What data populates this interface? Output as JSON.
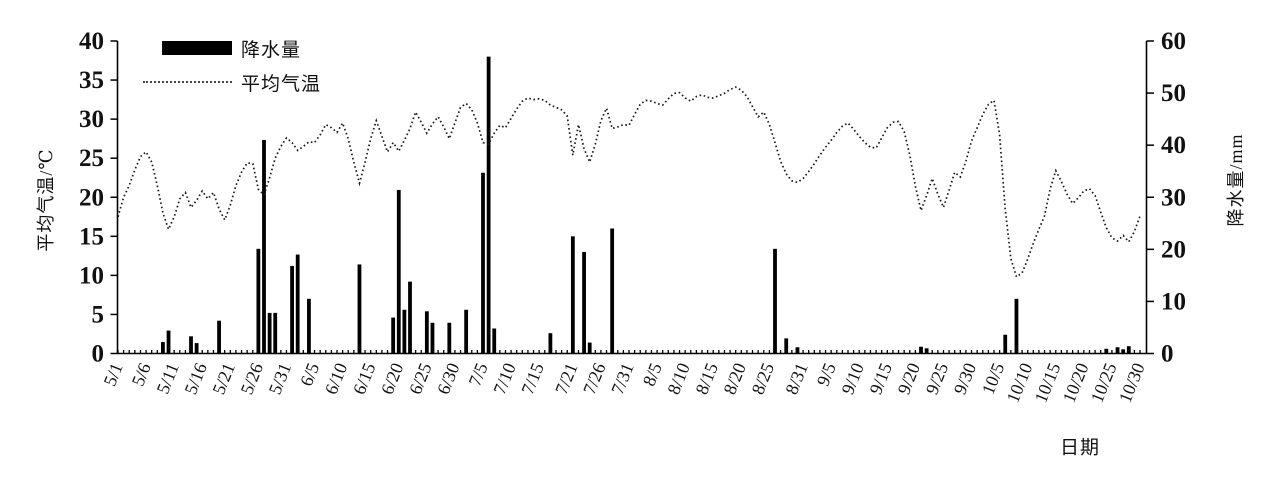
{
  "colors": {
    "ink": "#000000",
    "background": "#ffffff"
  },
  "legend": {
    "precip_label": "降水量",
    "temp_label": "平均气温"
  },
  "chart_data": {
    "type": "bar+line",
    "title": "",
    "left_axis": {
      "label": "平均气温/℃",
      "min": 0,
      "max": 40,
      "step": 5,
      "ticks": [
        0,
        5,
        10,
        15,
        20,
        25,
        30,
        35,
        40
      ]
    },
    "right_axis": {
      "label": "降水量/mm",
      "min": 0,
      "max": 60,
      "step": 10,
      "ticks": [
        0,
        10,
        20,
        30,
        40,
        50,
        60
      ]
    },
    "x_axis": {
      "label": "日期",
      "start": "5/1",
      "end": "10/30",
      "tick_labels": [
        "5/1",
        "5/6",
        "5/11",
        "5/16",
        "5/21",
        "5/26",
        "5/31",
        "6/5",
        "6/10",
        "6/15",
        "6/20",
        "6/25",
        "6/30",
        "7/5",
        "7/10",
        "7/15",
        "7/21",
        "7/26",
        "7/31",
        "8/5",
        "8/10",
        "8/15",
        "8/20",
        "8/25",
        "8/31",
        "9/5",
        "9/10",
        "9/15",
        "9/20",
        "9/25",
        "9/30",
        "10/5",
        "10/10",
        "10/15",
        "10/20",
        "10/25",
        "10/30"
      ]
    },
    "series": [
      {
        "name": "降水量",
        "type": "bar",
        "axis": "right",
        "unit": "mm",
        "points": [
          [
            "5/9",
            2.2
          ],
          [
            "5/10",
            4.4
          ],
          [
            "5/14",
            3.3
          ],
          [
            "5/15",
            2.0
          ],
          [
            "5/19",
            6.3
          ],
          [
            "5/26",
            20.1
          ],
          [
            "5/27",
            41.0
          ],
          [
            "5/28",
            7.8
          ],
          [
            "5/29",
            7.8
          ],
          [
            "6/1",
            16.8
          ],
          [
            "6/2",
            19.0
          ],
          [
            "6/4",
            10.5
          ],
          [
            "6/13",
            17.1
          ],
          [
            "6/19",
            6.9
          ],
          [
            "6/20",
            31.4
          ],
          [
            "6/21",
            8.4
          ],
          [
            "6/22",
            13.8
          ],
          [
            "6/25",
            8.1
          ],
          [
            "6/26",
            5.9
          ],
          [
            "6/29",
            5.9
          ],
          [
            "7/2",
            8.4
          ],
          [
            "7/5",
            34.7
          ],
          [
            "7/6",
            57.0
          ],
          [
            "7/7",
            4.8
          ],
          [
            "7/17",
            3.9
          ],
          [
            "7/21",
            22.5
          ],
          [
            "7/23",
            19.5
          ],
          [
            "7/24",
            2.1
          ],
          [
            "7/28",
            24.0
          ],
          [
            "8/26",
            20.1
          ],
          [
            "8/28",
            2.9
          ],
          [
            "8/30",
            1.2
          ],
          [
            "9/21",
            1.3
          ],
          [
            "9/22",
            1.0
          ],
          [
            "10/6",
            3.6
          ],
          [
            "10/8",
            10.5
          ],
          [
            "10/24",
            0.9
          ],
          [
            "10/26",
            1.2
          ],
          [
            "10/27",
            0.8
          ],
          [
            "10/28",
            1.4
          ]
        ]
      },
      {
        "name": "平均气温",
        "type": "line",
        "axis": "left",
        "unit": "℃",
        "x_start": "5/1",
        "daily_values": [
          17.5,
          20.0,
          21.5,
          23.5,
          25.2,
          25.8,
          24.5,
          21.5,
          18.0,
          15.9,
          17.5,
          19.8,
          20.6,
          18.7,
          19.6,
          20.8,
          19.8,
          20.6,
          18.5,
          17.1,
          19.0,
          21.5,
          23.2,
          24.4,
          24.3,
          21.0,
          20.3,
          22.5,
          25.0,
          26.5,
          27.6,
          27.0,
          26.0,
          26.5,
          27.1,
          27.0,
          28.0,
          29.3,
          28.9,
          28.3,
          29.5,
          27.5,
          24.5,
          21.8,
          24.5,
          27.5,
          29.8,
          27.8,
          25.8,
          27.0,
          25.9,
          27.3,
          28.8,
          30.9,
          29.6,
          28.2,
          29.4,
          30.3,
          29.0,
          27.5,
          29.5,
          31.5,
          32.0,
          31.2,
          29.5,
          27.0,
          26.8,
          28.2,
          29.2,
          28.9,
          30.1,
          31.3,
          32.3,
          32.7,
          32.5,
          32.6,
          32.4,
          31.8,
          31.5,
          31.2,
          30.4,
          25.4,
          29.3,
          26.2,
          24.5,
          26.8,
          29.8,
          31.4,
          28.8,
          29.0,
          29.3,
          29.2,
          30.6,
          31.9,
          32.4,
          32.3,
          32.0,
          31.8,
          32.6,
          33.3,
          33.4,
          32.7,
          32.3,
          32.9,
          33.1,
          32.8,
          32.7,
          33.0,
          33.3,
          33.8,
          34.1,
          33.7,
          32.9,
          31.6,
          30.3,
          30.9,
          29.3,
          27.0,
          24.6,
          23.0,
          22.1,
          21.9,
          22.4,
          23.3,
          24.3,
          25.4,
          26.4,
          27.3,
          28.3,
          29.1,
          29.5,
          28.7,
          27.8,
          27.0,
          26.4,
          26.3,
          27.6,
          28.9,
          29.6,
          29.7,
          28.4,
          25.4,
          21.4,
          18.3,
          20.2,
          22.4,
          20.4,
          18.7,
          20.9,
          23.2,
          22.6,
          24.6,
          27.2,
          28.9,
          30.6,
          31.9,
          32.4,
          28.0,
          18.5,
          12.2,
          9.8,
          10.3,
          12.1,
          14.1,
          15.9,
          17.6,
          21.1,
          23.4,
          22.0,
          20.4,
          19.2,
          19.9,
          20.8,
          21.1,
          20.2,
          18.1,
          16.1,
          14.8,
          14.4,
          15.1,
          14.3,
          15.6,
          17.6
        ]
      }
    ],
    "layout_hints": {
      "grid": "off",
      "legend_position": "top-left-inside",
      "x_labels_rotated": true
    }
  }
}
